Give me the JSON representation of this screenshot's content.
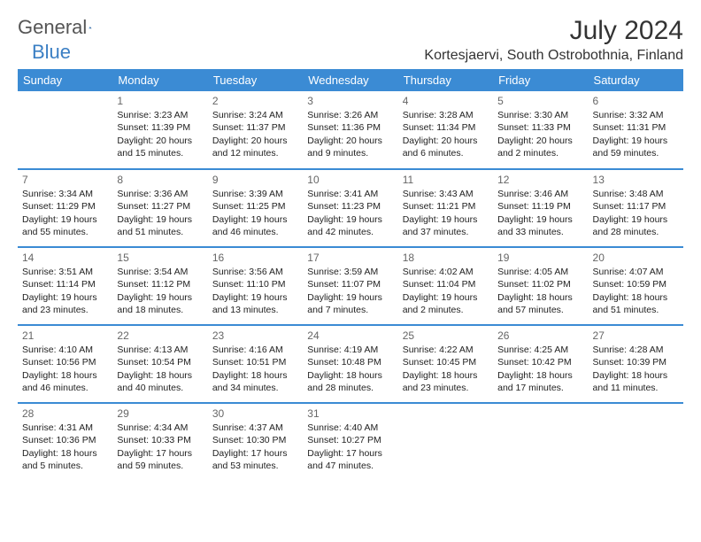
{
  "brand": {
    "name1": "General",
    "name2": "Blue"
  },
  "title": "July 2024",
  "location": "Kortesjaervi, South Ostrobothnia, Finland",
  "colors": {
    "header_bg": "#3b8bd4",
    "header_text": "#ffffff",
    "row_border": "#3b8bd4",
    "daynum": "#666666",
    "body_text": "#222222",
    "page_bg": "#ffffff",
    "logo_gray": "#555555",
    "logo_blue": "#3b7fc4"
  },
  "weekdays": [
    "Sunday",
    "Monday",
    "Tuesday",
    "Wednesday",
    "Thursday",
    "Friday",
    "Saturday"
  ],
  "cell_font_size": 10.5,
  "daynum_font_size": 12,
  "weeks": [
    [
      null,
      {
        "n": "1",
        "sr": "3:23 AM",
        "ss": "11:39 PM",
        "dl": "20 hours and 15 minutes."
      },
      {
        "n": "2",
        "sr": "3:24 AM",
        "ss": "11:37 PM",
        "dl": "20 hours and 12 minutes."
      },
      {
        "n": "3",
        "sr": "3:26 AM",
        "ss": "11:36 PM",
        "dl": "20 hours and 9 minutes."
      },
      {
        "n": "4",
        "sr": "3:28 AM",
        "ss": "11:34 PM",
        "dl": "20 hours and 6 minutes."
      },
      {
        "n": "5",
        "sr": "3:30 AM",
        "ss": "11:33 PM",
        "dl": "20 hours and 2 minutes."
      },
      {
        "n": "6",
        "sr": "3:32 AM",
        "ss": "11:31 PM",
        "dl": "19 hours and 59 minutes."
      }
    ],
    [
      {
        "n": "7",
        "sr": "3:34 AM",
        "ss": "11:29 PM",
        "dl": "19 hours and 55 minutes."
      },
      {
        "n": "8",
        "sr": "3:36 AM",
        "ss": "11:27 PM",
        "dl": "19 hours and 51 minutes."
      },
      {
        "n": "9",
        "sr": "3:39 AM",
        "ss": "11:25 PM",
        "dl": "19 hours and 46 minutes."
      },
      {
        "n": "10",
        "sr": "3:41 AM",
        "ss": "11:23 PM",
        "dl": "19 hours and 42 minutes."
      },
      {
        "n": "11",
        "sr": "3:43 AM",
        "ss": "11:21 PM",
        "dl": "19 hours and 37 minutes."
      },
      {
        "n": "12",
        "sr": "3:46 AM",
        "ss": "11:19 PM",
        "dl": "19 hours and 33 minutes."
      },
      {
        "n": "13",
        "sr": "3:48 AM",
        "ss": "11:17 PM",
        "dl": "19 hours and 28 minutes."
      }
    ],
    [
      {
        "n": "14",
        "sr": "3:51 AM",
        "ss": "11:14 PM",
        "dl": "19 hours and 23 minutes."
      },
      {
        "n": "15",
        "sr": "3:54 AM",
        "ss": "11:12 PM",
        "dl": "19 hours and 18 minutes."
      },
      {
        "n": "16",
        "sr": "3:56 AM",
        "ss": "11:10 PM",
        "dl": "19 hours and 13 minutes."
      },
      {
        "n": "17",
        "sr": "3:59 AM",
        "ss": "11:07 PM",
        "dl": "19 hours and 7 minutes."
      },
      {
        "n": "18",
        "sr": "4:02 AM",
        "ss": "11:04 PM",
        "dl": "19 hours and 2 minutes."
      },
      {
        "n": "19",
        "sr": "4:05 AM",
        "ss": "11:02 PM",
        "dl": "18 hours and 57 minutes."
      },
      {
        "n": "20",
        "sr": "4:07 AM",
        "ss": "10:59 PM",
        "dl": "18 hours and 51 minutes."
      }
    ],
    [
      {
        "n": "21",
        "sr": "4:10 AM",
        "ss": "10:56 PM",
        "dl": "18 hours and 46 minutes."
      },
      {
        "n": "22",
        "sr": "4:13 AM",
        "ss": "10:54 PM",
        "dl": "18 hours and 40 minutes."
      },
      {
        "n": "23",
        "sr": "4:16 AM",
        "ss": "10:51 PM",
        "dl": "18 hours and 34 minutes."
      },
      {
        "n": "24",
        "sr": "4:19 AM",
        "ss": "10:48 PM",
        "dl": "18 hours and 28 minutes."
      },
      {
        "n": "25",
        "sr": "4:22 AM",
        "ss": "10:45 PM",
        "dl": "18 hours and 23 minutes."
      },
      {
        "n": "26",
        "sr": "4:25 AM",
        "ss": "10:42 PM",
        "dl": "18 hours and 17 minutes."
      },
      {
        "n": "27",
        "sr": "4:28 AM",
        "ss": "10:39 PM",
        "dl": "18 hours and 11 minutes."
      }
    ],
    [
      {
        "n": "28",
        "sr": "4:31 AM",
        "ss": "10:36 PM",
        "dl": "18 hours and 5 minutes."
      },
      {
        "n": "29",
        "sr": "4:34 AM",
        "ss": "10:33 PM",
        "dl": "17 hours and 59 minutes."
      },
      {
        "n": "30",
        "sr": "4:37 AM",
        "ss": "10:30 PM",
        "dl": "17 hours and 53 minutes."
      },
      {
        "n": "31",
        "sr": "4:40 AM",
        "ss": "10:27 PM",
        "dl": "17 hours and 47 minutes."
      },
      null,
      null,
      null
    ]
  ],
  "labels": {
    "sunrise": "Sunrise: ",
    "sunset": "Sunset: ",
    "daylight": "Daylight: "
  }
}
